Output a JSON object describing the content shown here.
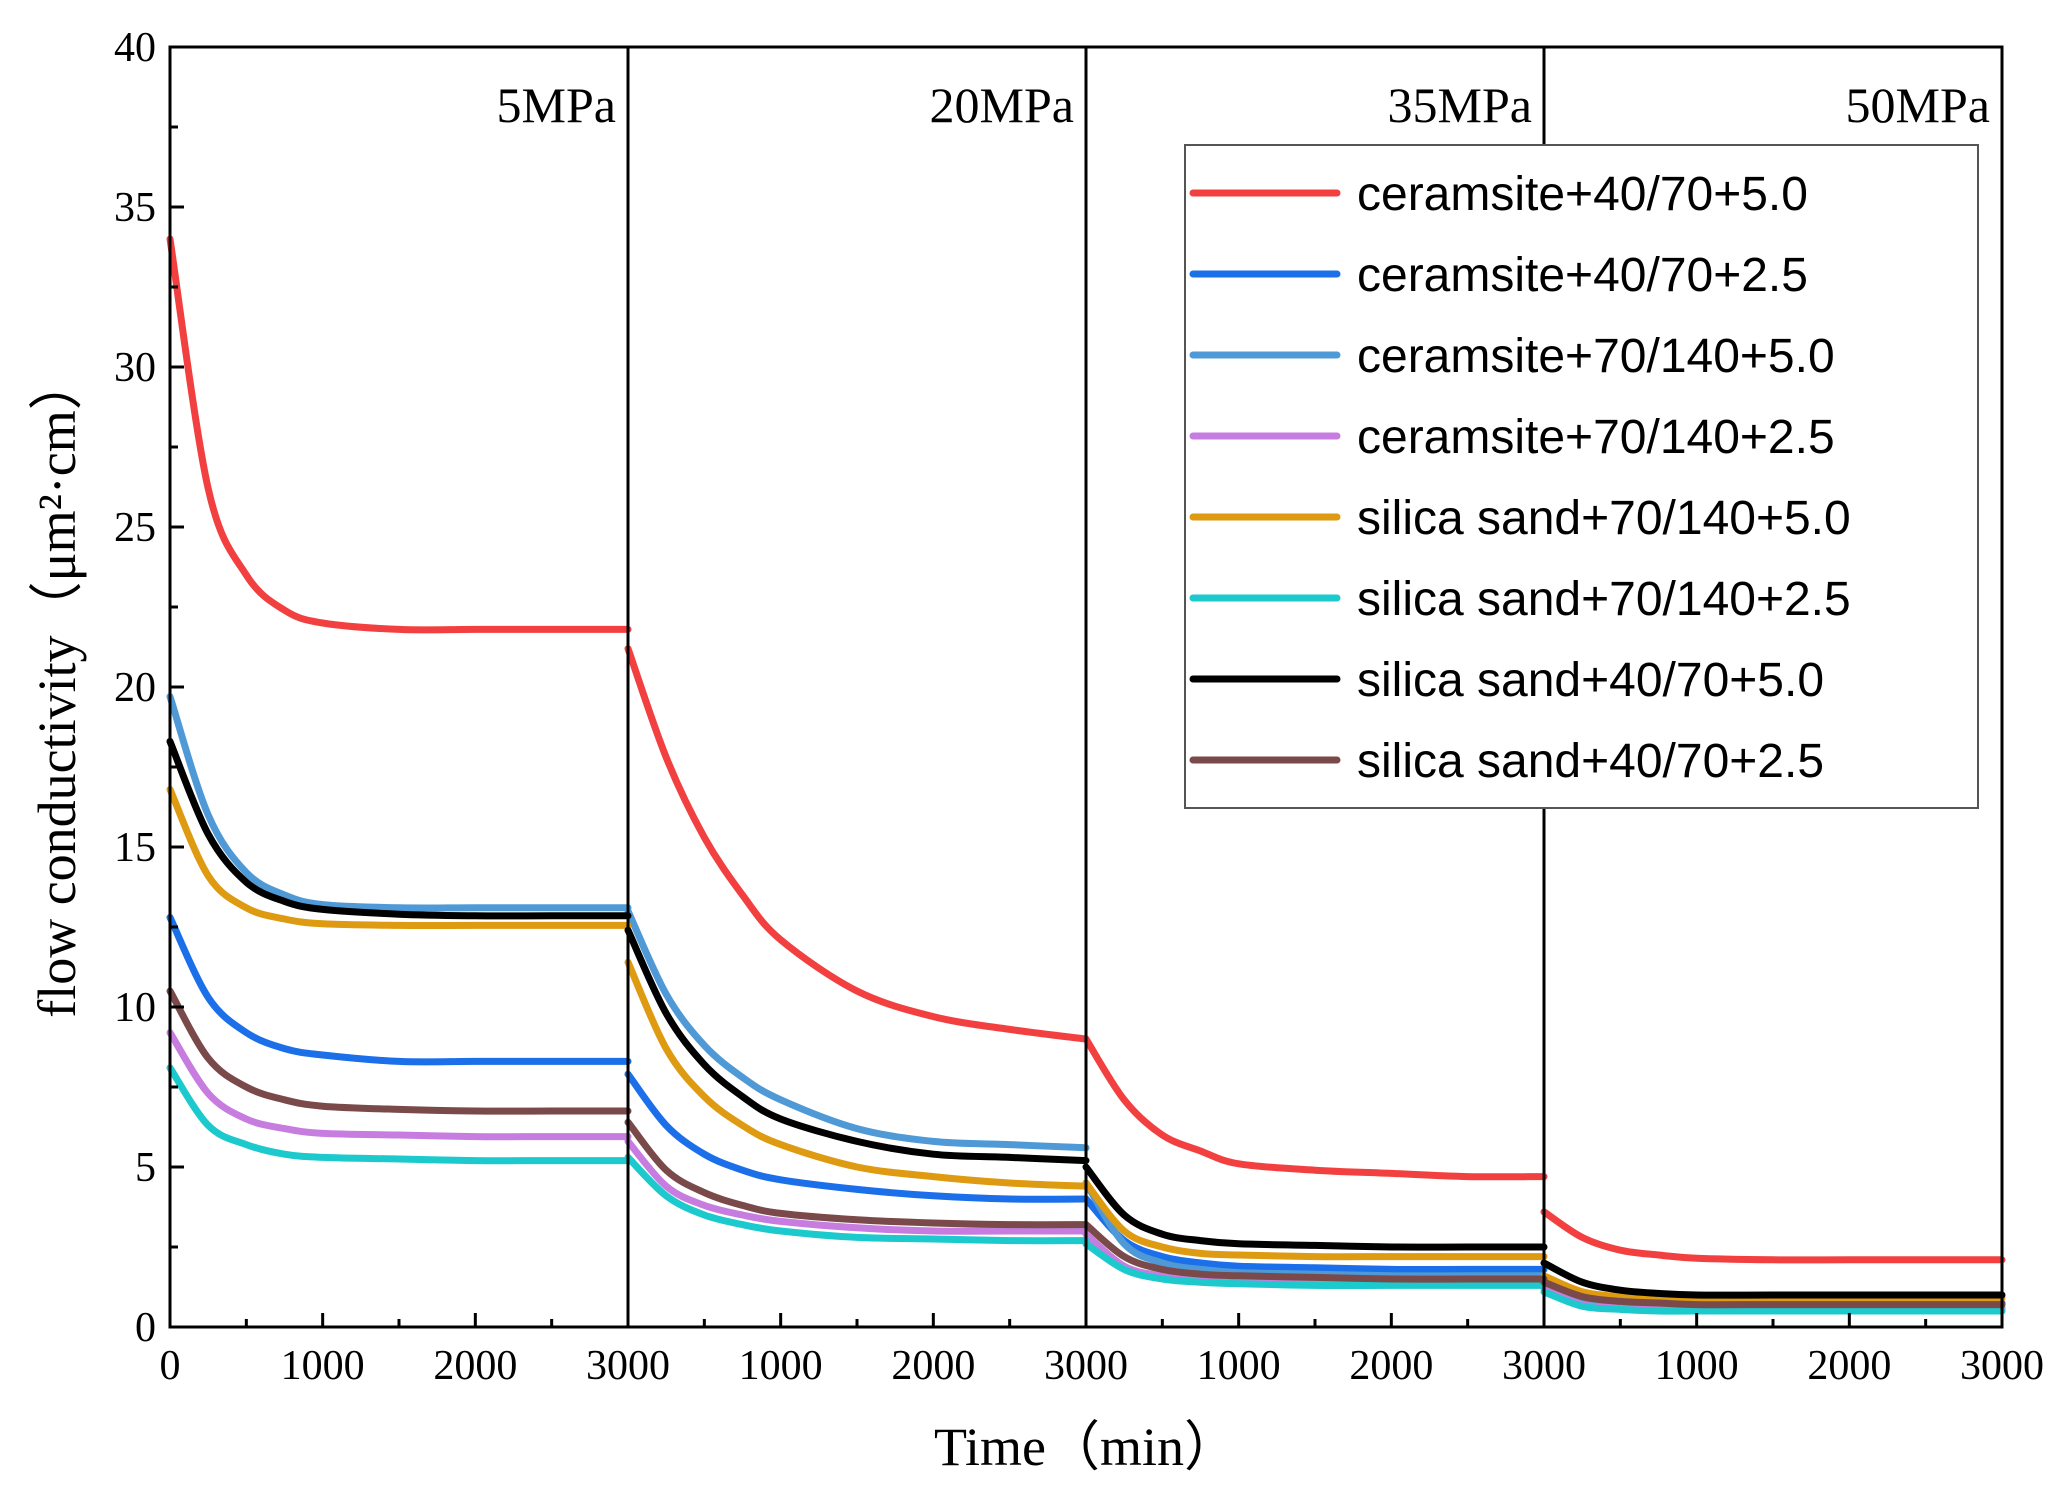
{
  "chart_data": {
    "type": "line",
    "xlabel": "Time（min）",
    "ylabel": "flow conductivity（μm²·cm）",
    "ylim": [
      0,
      40
    ],
    "yticks": [
      0,
      5,
      10,
      15,
      20,
      25,
      30,
      35,
      40
    ],
    "xticks_per_panel": [
      0,
      1000,
      2000,
      3000
    ],
    "xlim_per_panel": [
      0,
      3000
    ],
    "grid": false,
    "legend_position": "top-right",
    "panels": [
      {
        "label": "5MPa"
      },
      {
        "label": "20MPa"
      },
      {
        "label": "35MPa"
      },
      {
        "label": "50MPa"
      }
    ],
    "x_samples": [
      0,
      250,
      500,
      750,
      1000,
      1500,
      2000,
      2500,
      3000
    ],
    "series": [
      {
        "name": "ceramsite+40/70+5.0",
        "color": "#f24040",
        "values": [
          [
            34.0,
            26.2,
            23.5,
            22.4,
            22.0,
            21.8,
            21.8,
            21.8,
            21.8
          ],
          [
            21.2,
            17.8,
            15.3,
            13.5,
            12.1,
            10.5,
            9.7,
            9.3,
            9.0
          ],
          [
            9.0,
            7.1,
            6.0,
            5.5,
            5.1,
            4.9,
            4.8,
            4.7,
            4.7
          ],
          [
            3.6,
            2.8,
            2.4,
            2.25,
            2.15,
            2.1,
            2.1,
            2.1,
            2.1
          ]
        ]
      },
      {
        "name": "ceramsite+40/70+2.5",
        "color": "#1b6fe8",
        "values": [
          [
            12.8,
            10.3,
            9.2,
            8.7,
            8.5,
            8.3,
            8.3,
            8.3,
            8.3
          ],
          [
            7.9,
            6.3,
            5.4,
            4.9,
            4.6,
            4.3,
            4.1,
            4.0,
            4.0
          ],
          [
            4.0,
            2.7,
            2.2,
            2.0,
            1.9,
            1.85,
            1.8,
            1.8,
            1.8
          ],
          [
            1.5,
            1.05,
            0.85,
            0.8,
            0.75,
            0.75,
            0.75,
            0.75,
            0.75
          ]
        ]
      },
      {
        "name": "ceramsite+70/140+5.0",
        "color": "#4f9ad6",
        "values": [
          [
            19.7,
            16.0,
            14.2,
            13.5,
            13.2,
            13.1,
            13.1,
            13.1,
            13.1
          ],
          [
            13.0,
            10.4,
            8.8,
            7.8,
            7.1,
            6.2,
            5.8,
            5.7,
            5.6
          ],
          [
            4.5,
            2.6,
            2.0,
            1.8,
            1.7,
            1.65,
            1.6,
            1.6,
            1.6
          ],
          [
            1.3,
            0.85,
            0.7,
            0.65,
            0.6,
            0.6,
            0.6,
            0.6,
            0.6
          ]
        ]
      },
      {
        "name": "ceramsite+70/140+2.5",
        "color": "#c77de0",
        "values": [
          [
            9.2,
            7.3,
            6.5,
            6.2,
            6.05,
            6.0,
            5.95,
            5.95,
            5.95
          ],
          [
            5.8,
            4.4,
            3.8,
            3.5,
            3.3,
            3.1,
            3.0,
            3.0,
            3.0
          ],
          [
            2.9,
            1.9,
            1.6,
            1.5,
            1.45,
            1.4,
            1.4,
            1.4,
            1.4
          ],
          [
            1.2,
            0.7,
            0.6,
            0.55,
            0.55,
            0.55,
            0.55,
            0.55,
            0.55
          ]
        ]
      },
      {
        "name": "silica sand+70/140+5.0",
        "color": "#de9a10",
        "values": [
          [
            16.8,
            14.1,
            13.1,
            12.75,
            12.6,
            12.55,
            12.55,
            12.55,
            12.55
          ],
          [
            11.4,
            8.7,
            7.2,
            6.3,
            5.7,
            5.0,
            4.7,
            4.5,
            4.4
          ],
          [
            4.5,
            3.0,
            2.5,
            2.3,
            2.25,
            2.2,
            2.2,
            2.2,
            2.2
          ],
          [
            1.6,
            1.1,
            0.95,
            0.9,
            0.9,
            0.9,
            0.9,
            0.9,
            0.9
          ]
        ]
      },
      {
        "name": "silica sand+70/140+2.5",
        "color": "#1cc9cc",
        "values": [
          [
            8.1,
            6.3,
            5.7,
            5.4,
            5.3,
            5.25,
            5.2,
            5.2,
            5.2
          ],
          [
            5.3,
            4.1,
            3.5,
            3.2,
            3.0,
            2.8,
            2.75,
            2.7,
            2.7
          ],
          [
            2.6,
            1.8,
            1.5,
            1.4,
            1.35,
            1.3,
            1.3,
            1.3,
            1.3
          ],
          [
            1.1,
            0.65,
            0.55,
            0.5,
            0.5,
            0.5,
            0.5,
            0.5,
            0.5
          ]
        ]
      },
      {
        "name": "silica sand+40/70+5.0",
        "color": "#000000",
        "values": [
          [
            18.3,
            15.4,
            13.9,
            13.3,
            13.05,
            12.9,
            12.85,
            12.85,
            12.85
          ],
          [
            12.4,
            9.8,
            8.2,
            7.2,
            6.5,
            5.8,
            5.4,
            5.3,
            5.2
          ],
          [
            5.0,
            3.5,
            2.9,
            2.7,
            2.6,
            2.55,
            2.5,
            2.5,
            2.5
          ],
          [
            2.0,
            1.4,
            1.15,
            1.05,
            1.0,
            1.0,
            1.0,
            1.0,
            1.0
          ]
        ]
      },
      {
        "name": "silica sand+40/70+2.5",
        "color": "#7a4a4a",
        "values": [
          [
            10.5,
            8.4,
            7.5,
            7.1,
            6.9,
            6.8,
            6.75,
            6.75,
            6.75
          ],
          [
            6.4,
            4.9,
            4.2,
            3.8,
            3.55,
            3.35,
            3.25,
            3.2,
            3.2
          ],
          [
            3.2,
            2.2,
            1.8,
            1.65,
            1.6,
            1.55,
            1.5,
            1.5,
            1.5
          ],
          [
            1.4,
            0.95,
            0.8,
            0.75,
            0.7,
            0.7,
            0.7,
            0.7,
            0.7
          ]
        ]
      }
    ]
  }
}
